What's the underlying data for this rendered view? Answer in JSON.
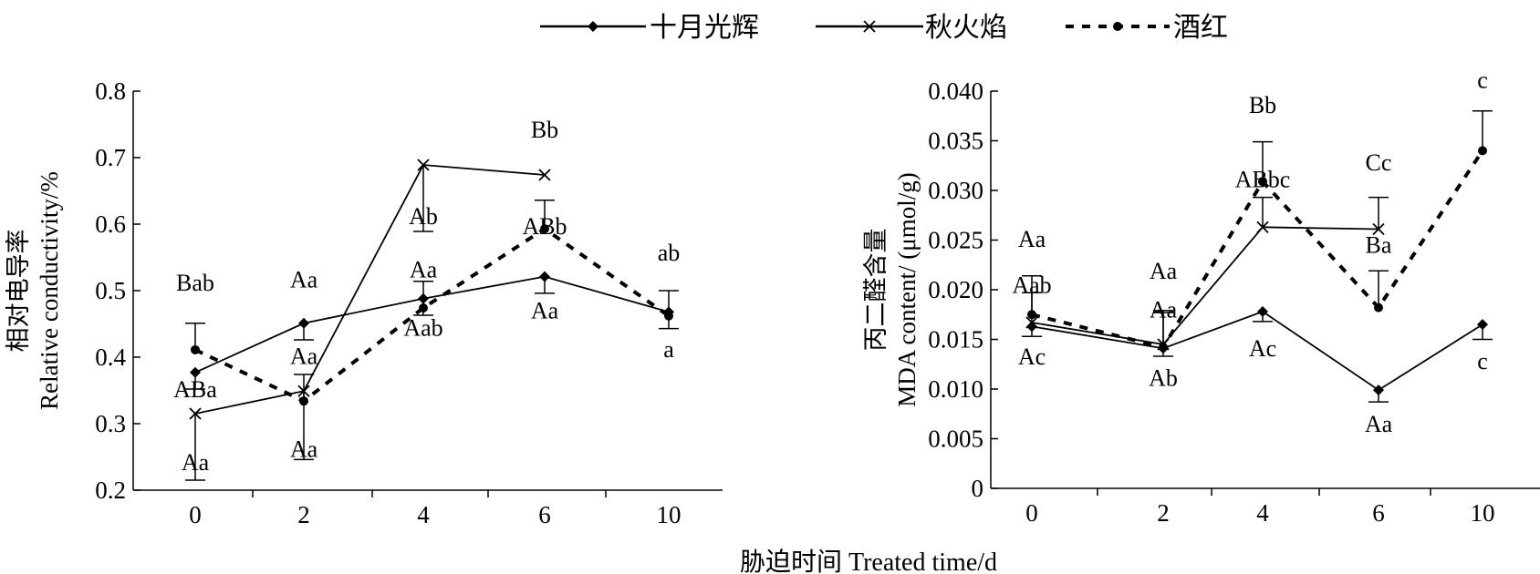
{
  "legend": [
    {
      "name": "十月光辉",
      "marker": "diamond",
      "dash": "solid"
    },
    {
      "name": "秋火焰",
      "marker": "cross",
      "dash": "solid"
    },
    {
      "name": "酒红",
      "marker": "circle",
      "dash": "dotted"
    }
  ],
  "shared_xlabel": "胁迫时间 Treated time/d",
  "chart_data": [
    {
      "type": "line",
      "ylabel_cn": "相对电导率",
      "ylabel_en": "Relative conductivity/%",
      "xlabel": "",
      "categories": [
        "0",
        "2",
        "4",
        "6",
        "10"
      ],
      "ylim": [
        0.2,
        0.8
      ],
      "yticks": [
        "0.2",
        "0.3",
        "0.4",
        "0.5",
        "0.6",
        "0.7",
        "0.8"
      ],
      "grid": false,
      "series": [
        {
          "name": "十月光辉",
          "values": [
            0.377,
            0.451,
            0.488,
            0.521,
            0.468
          ],
          "errors": [
            0.025,
            0.025,
            0.025,
            0.025,
            0.025
          ],
          "error_dir": "down"
        },
        {
          "name": "秋火焰",
          "values": [
            0.315,
            0.349,
            0.689,
            0.674,
            null
          ],
          "errors": [
            0.1,
            0.103,
            0.1,
            null,
            null
          ],
          "error_dir": "down"
        },
        {
          "name": "酒红",
          "values": [
            0.411,
            0.334,
            0.474,
            0.593,
            0.462
          ],
          "errors": [
            0.04,
            0.04,
            0.04,
            0.043,
            0.038
          ],
          "error_dir": "up"
        }
      ],
      "annotations": [
        {
          "text": "Bab",
          "x": "0",
          "y": 0.5
        },
        {
          "text": "ABa",
          "x": "0",
          "y": 0.34
        },
        {
          "text": "Aa",
          "x": "0",
          "y": 0.23
        },
        {
          "text": "Aa",
          "x": "2",
          "y": 0.505
        },
        {
          "text": "Aa",
          "x": "2",
          "y": 0.39
        },
        {
          "text": "Aa",
          "x": "2",
          "y": 0.25
        },
        {
          "text": "Aa",
          "x": "4",
          "y": 0.52
        },
        {
          "text": "Ab",
          "x": "4",
          "y": 0.6
        },
        {
          "text": "Aab",
          "x": "4",
          "y": 0.432
        },
        {
          "text": "Bb",
          "x": "6",
          "y": 0.73
        },
        {
          "text": "ABb",
          "x": "6",
          "y": 0.585
        },
        {
          "text": "Aa",
          "x": "6",
          "y": 0.458
        },
        {
          "text": "ab",
          "x": "10",
          "y": 0.545
        },
        {
          "text": "a",
          "x": "10",
          "y": 0.4
        }
      ]
    },
    {
      "type": "line",
      "ylabel_cn": "丙二醛含量",
      "ylabel_en": "MDA content/ (μmol/g)",
      "xlabel": "",
      "categories": [
        "0",
        "2",
        "4",
        "6",
        "10"
      ],
      "ylim": [
        0,
        0.04
      ],
      "yticks": [
        "0",
        "0.005",
        "0.010",
        "0.015",
        "0.020",
        "0.025",
        "0.030",
        "0.035",
        "0.040"
      ],
      "grid": false,
      "series": [
        {
          "name": "十月光辉",
          "values": [
            0.0163,
            0.0141,
            0.0178,
            0.0099,
            0.0165
          ],
          "errors": [
            0.001,
            0.0008,
            0.001,
            0.0012,
            0.0015
          ],
          "error_dir": "down"
        },
        {
          "name": "秋火焰",
          "values": [
            0.0167,
            0.0145,
            0.0263,
            0.0261,
            null
          ],
          "errors": [
            0.0047,
            0.0034,
            0.003,
            0.0032,
            null
          ],
          "error_dir": "up"
        },
        {
          "name": "酒红",
          "values": [
            0.0175,
            0.0142,
            0.0309,
            0.0182,
            0.034
          ],
          "errors": [
            0.0022,
            0.0035,
            0.004,
            0.0037,
            0.004
          ],
          "error_dir": "up"
        }
      ],
      "annotations": [
        {
          "text": "Aa",
          "x": "0",
          "y": 0.0243
        },
        {
          "text": "Aab",
          "x": "0",
          "y": 0.0197
        },
        {
          "text": "Ac",
          "x": "0",
          "y": 0.0125
        },
        {
          "text": "Aa",
          "x": "2",
          "y": 0.0211
        },
        {
          "text": "Aa",
          "x": "2",
          "y": 0.0172
        },
        {
          "text": "Ab",
          "x": "2",
          "y": 0.0103
        },
        {
          "text": "Bb",
          "x": "4",
          "y": 0.0378
        },
        {
          "text": "ABbc",
          "x": "4",
          "y": 0.0303
        },
        {
          "text": "Ac",
          "x": "4",
          "y": 0.0133
        },
        {
          "text": "Cc",
          "x": "6",
          "y": 0.032
        },
        {
          "text": "Ba",
          "x": "6",
          "y": 0.0237
        },
        {
          "text": "Aa",
          "x": "6",
          "y": 0.0057
        },
        {
          "text": "c",
          "x": "10",
          "y": 0.0403
        },
        {
          "text": "c",
          "x": "10",
          "y": 0.012
        }
      ]
    }
  ]
}
